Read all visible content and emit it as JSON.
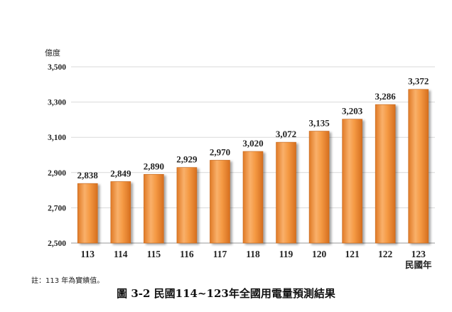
{
  "chart_data": {
    "type": "bar",
    "title": "",
    "ylabel": "億度",
    "xlabel": "民國年",
    "ylim": [
      2500,
      3500
    ],
    "yticks": [
      "2,500",
      "2,700",
      "2,900",
      "3,100",
      "3,300",
      "3,500"
    ],
    "ytick_values": [
      2500,
      2700,
      2900,
      3100,
      3300,
      3500
    ],
    "grid": true,
    "legend": "none",
    "bar_color": "#f0963a",
    "categories": [
      "113",
      "114",
      "115",
      "116",
      "117",
      "118",
      "119",
      "120",
      "121",
      "122",
      "123"
    ],
    "values": [
      2838,
      2849,
      2890,
      2929,
      2970,
      3020,
      3072,
      3135,
      3203,
      3286,
      3372
    ],
    "data_labels": [
      "2,838",
      "2,849",
      "2,890",
      "2,929",
      "2,970",
      "3,020",
      "3,072",
      "3,135",
      "3,203",
      "3,286",
      "3,372"
    ]
  },
  "note": "註：113 年為實績值。",
  "caption": "圖 3-2  民國114~123年全國用電量預測結果"
}
